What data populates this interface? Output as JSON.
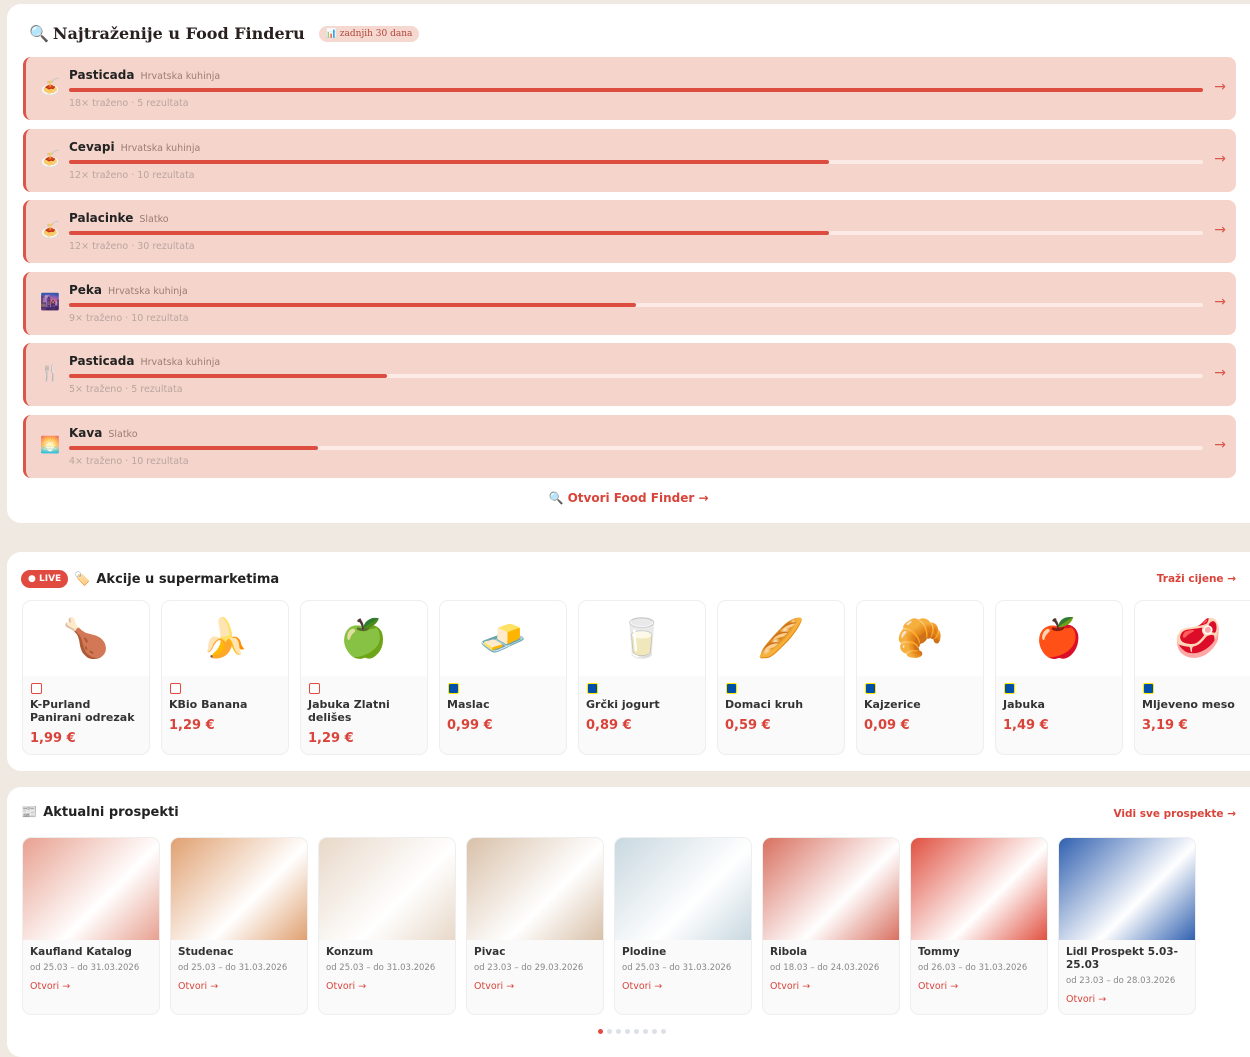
{
  "food_finder": {
    "title": "Najtraženije u Food Finderu",
    "period_badge": "zadnjih 30 dana",
    "open_link": "Otvori Food Finder →",
    "items": [
      {
        "name": "Pasticada",
        "category": "Hrvatska kuhinja",
        "meta": "18× traženo · 5 rezultata",
        "popularity_pct": 100,
        "icon": "🍝"
      },
      {
        "name": "Cevapi",
        "category": "Hrvatska kuhinja",
        "meta": "12× traženo · 10 rezultata",
        "popularity_pct": 67,
        "icon": "🍝"
      },
      {
        "name": "Palacinke",
        "category": "Slatko",
        "meta": "12× traženo · 30 rezultata",
        "popularity_pct": 67,
        "icon": "🍝"
      },
      {
        "name": "Peka",
        "category": "Hrvatska kuhinja",
        "meta": "9× traženo · 10 rezultata",
        "popularity_pct": 50,
        "icon": "🌆"
      },
      {
        "name": "Pasticada",
        "category": "Hrvatska kuhinja",
        "meta": "5× traženo · 5 rezultata",
        "popularity_pct": 28,
        "icon": "🍴"
      },
      {
        "name": "Kava",
        "category": "Slatko",
        "meta": "4× traženo · 10 rezultata",
        "popularity_pct": 22,
        "icon": "🌅"
      }
    ]
  },
  "deals": {
    "live_label": "● LIVE",
    "title": "Akcije u supermarketima",
    "link": "Traži cijene →",
    "products": [
      {
        "name": "K-Purland Panirani odrezak",
        "price": "1,99 €",
        "store": "K",
        "img": "🍗"
      },
      {
        "name": "KBio Banana",
        "price": "1,29 €",
        "store": "K",
        "img": "🍌"
      },
      {
        "name": "Jabuka Zlatni delišes",
        "price": "1,29 €",
        "store": "K",
        "img": "🍏"
      },
      {
        "name": "Maslac",
        "price": "0,99 €",
        "store": "L",
        "img": "🧈"
      },
      {
        "name": "Grčki jogurt",
        "price": "0,89 €",
        "store": "L",
        "img": "🥛"
      },
      {
        "name": "Domaci kruh",
        "price": "0,59 €",
        "store": "L",
        "img": "🥖"
      },
      {
        "name": "Kajzerice",
        "price": "0,09 €",
        "store": "L",
        "img": "🥐"
      },
      {
        "name": "Jabuka",
        "price": "1,49 €",
        "store": "L",
        "img": "🍎"
      },
      {
        "name": "Mljeveno meso",
        "price": "3,19 €",
        "store": "L",
        "img": "🥩"
      }
    ]
  },
  "prospects": {
    "title": "Aktualni prospekti",
    "link": "Vidi sve prospekte →",
    "open_label": "Otvori →",
    "items": [
      {
        "name": "Kaufland Katalog",
        "dates": "od 25.03 – do 31.03.2026",
        "color": "#e8a090"
      },
      {
        "name": "Studenac",
        "dates": "od 25.03 – do 31.03.2026",
        "color": "#e0a070"
      },
      {
        "name": "Konzum",
        "dates": "od 25.03 – do 31.03.2026",
        "color": "#e8d8c8"
      },
      {
        "name": "Pivac",
        "dates": "od 23.03 – do 29.03.2026",
        "color": "#d8c0a8"
      },
      {
        "name": "Plodine",
        "dates": "od 25.03 – do 31.03.2026",
        "color": "#c8d8e0"
      },
      {
        "name": "Ribola",
        "dates": "od 18.03 – do 24.03.2026",
        "color": "#d87060"
      },
      {
        "name": "Tommy",
        "dates": "od 26.03 – do 31.03.2026",
        "color": "#e05040"
      },
      {
        "name": "Lidl Prospekt 5.03-25.03",
        "dates": "od 23.03 – do 28.03.2026",
        "color": "#3060b0"
      }
    ]
  },
  "pagination": {
    "pages": 8,
    "current": 1
  }
}
